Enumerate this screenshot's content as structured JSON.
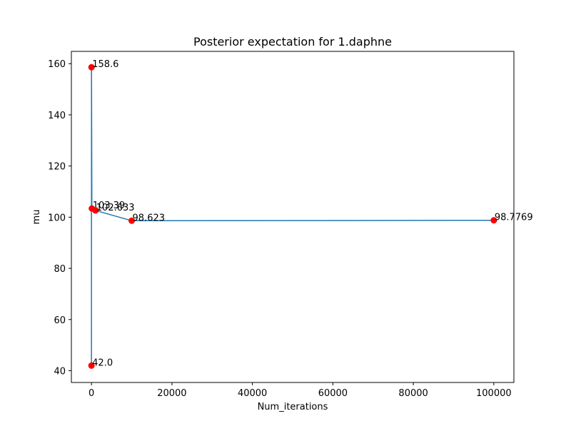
{
  "chart_data": {
    "type": "line",
    "title": "Posterior expectation for 1.daphne",
    "xlabel": "Num_iterations",
    "ylabel": "mu",
    "xlim": [
      -4995,
      104995
    ],
    "ylim": [
      35.4,
      164.8
    ],
    "xticks": [
      0,
      20000,
      40000,
      60000,
      80000,
      100000
    ],
    "yticks": [
      40,
      60,
      80,
      100,
      120,
      140,
      160
    ],
    "grid": false,
    "legend": "none",
    "series": [
      {
        "x": [
          1,
          10,
          100,
          1000,
          10000,
          100000
        ],
        "y": [
          42.0,
          158.6,
          103.39,
          102.633,
          98.623,
          98.7769
        ]
      }
    ],
    "point_labels": [
      "42.0",
      "158.6",
      "103.39",
      "102.633",
      "98.623",
      "98.7769"
    ],
    "line_color": "#1f77b4",
    "marker_color": "#ff0000"
  }
}
